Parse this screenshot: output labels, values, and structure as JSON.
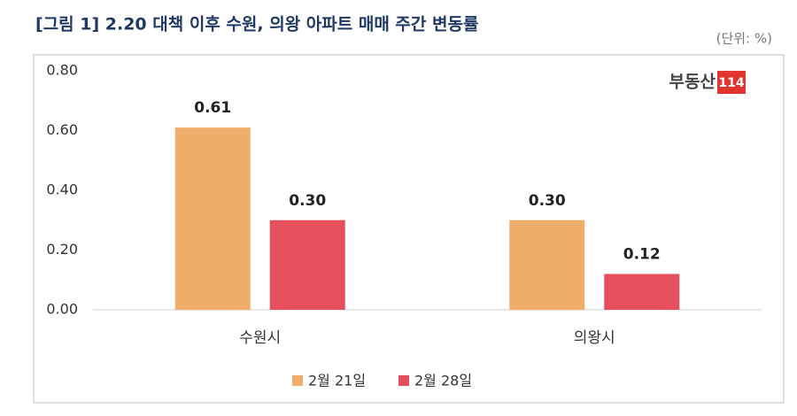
{
  "chart_data": {
    "type": "bar",
    "title": "[그림 1] 2.20 대책 이후 수원, 의왕 아파트 매매 주간 변동률",
    "unit": "(단위: %)",
    "logo": {
      "text": "부동산",
      "badge": "114"
    },
    "categories": [
      "수원시",
      "의왕시"
    ],
    "series": [
      {
        "name": "2월 21일",
        "color": "#f0ae6c",
        "values": [
          0.61,
          0.3
        ],
        "value_labels": [
          "0.61",
          "0.30"
        ]
      },
      {
        "name": "2월 28일",
        "color": "#e6505c",
        "values": [
          0.3,
          0.12
        ],
        "value_labels": [
          "0.30",
          "0.12"
        ]
      }
    ],
    "ylim": [
      0,
      0.8
    ],
    "yticks": [
      {
        "value": 0,
        "label": "0.00"
      },
      {
        "value": 0.2,
        "label": "0.20"
      },
      {
        "value": 0.4,
        "label": "0.40"
      },
      {
        "value": 0.6,
        "label": "0.60"
      },
      {
        "value": 0.8,
        "label": "0.80"
      }
    ],
    "grid": false
  }
}
